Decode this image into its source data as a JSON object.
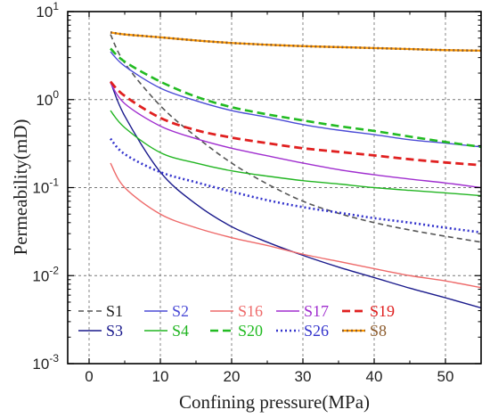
{
  "chart_data": {
    "type": "line",
    "xlabel": "Confining pressure(MPa)",
    "ylabel": "Permeability(mD)",
    "x_scale": "linear",
    "y_scale": "log",
    "xlim": [
      -3,
      55
    ],
    "ylim": [
      0.001,
      10
    ],
    "xticks": [
      0,
      10,
      20,
      30,
      40,
      50
    ],
    "xtick_labels": [
      "0",
      "10",
      "20",
      "30",
      "40",
      "50"
    ],
    "yticks": [
      0.001,
      0.01,
      0.1,
      1,
      10
    ],
    "ytick_labels": [
      {
        "base": "10",
        "exp": "-3"
      },
      {
        "base": "10",
        "exp": "-2"
      },
      {
        "base": "10",
        "exp": "-1"
      },
      {
        "base": "10",
        "exp": "0"
      },
      {
        "base": "10",
        "exp": "1"
      }
    ],
    "grid": true,
    "legend_position": "bottom-left, inside plot",
    "x": [
      3,
      5,
      10,
      15,
      20,
      25,
      30,
      35,
      40,
      45,
      50,
      55
    ],
    "series": [
      {
        "name": "S1",
        "color": "#555555",
        "dash": "dashed",
        "width": 1.6,
        "values": [
          5.5,
          2.6,
          0.85,
          0.38,
          0.19,
          0.11,
          0.07,
          0.051,
          0.04,
          0.033,
          0.028,
          0.024
        ]
      },
      {
        "name": "S3",
        "color": "#1a1a8c",
        "dash": "solid",
        "width": 1.4,
        "values": [
          1.6,
          0.65,
          0.15,
          0.065,
          0.036,
          0.024,
          0.017,
          0.0125,
          0.0095,
          0.0072,
          0.0056,
          0.0043
        ]
      },
      {
        "name": "S2",
        "color": "#4b4bd6",
        "dash": "solid",
        "width": 1.4,
        "values": [
          3.5,
          2.4,
          1.35,
          0.97,
          0.75,
          0.63,
          0.52,
          0.45,
          0.4,
          0.35,
          0.32,
          0.29
        ]
      },
      {
        "name": "S4",
        "color": "#22b522",
        "dash": "solid",
        "width": 1.4,
        "values": [
          0.75,
          0.48,
          0.25,
          0.19,
          0.155,
          0.135,
          0.12,
          0.11,
          0.1,
          0.093,
          0.087,
          0.081
        ]
      },
      {
        "name": "S16",
        "color": "#ee6a6a",
        "dash": "solid",
        "width": 1.4,
        "values": [
          0.19,
          0.1,
          0.05,
          0.035,
          0.027,
          0.022,
          0.0175,
          0.0145,
          0.012,
          0.01,
          0.0087,
          0.0073
        ]
      },
      {
        "name": "S20",
        "color": "#22bb22",
        "dash": "dashed",
        "width": 2.6,
        "values": [
          3.8,
          2.7,
          1.6,
          1.08,
          0.82,
          0.68,
          0.58,
          0.5,
          0.44,
          0.38,
          0.33,
          0.29
        ]
      },
      {
        "name": "S17",
        "color": "#a02ecf",
        "dash": "solid",
        "width": 1.4,
        "values": [
          1.55,
          0.9,
          0.5,
          0.36,
          0.28,
          0.23,
          0.19,
          0.16,
          0.14,
          0.125,
          0.113,
          0.1
        ]
      },
      {
        "name": "S26",
        "color": "#3333cc",
        "dash": "dotted",
        "width": 2.6,
        "values": [
          0.36,
          0.24,
          0.15,
          0.115,
          0.09,
          0.072,
          0.06,
          0.052,
          0.045,
          0.04,
          0.035,
          0.031
        ]
      },
      {
        "name": "S19",
        "color": "#e02020",
        "dash": "dashed",
        "width": 2.8,
        "values": [
          1.6,
          1.1,
          0.62,
          0.45,
          0.37,
          0.32,
          0.28,
          0.255,
          0.232,
          0.21,
          0.193,
          0.18
        ]
      },
      {
        "name": "S8",
        "color": "#8b5a2b",
        "dash": "dotted",
        "width": 2.6,
        "underlay": "#ff9a00",
        "values": [
          5.8,
          5.5,
          5.1,
          4.7,
          4.4,
          4.2,
          4.05,
          3.95,
          3.85,
          3.75,
          3.65,
          3.6
        ]
      }
    ],
    "legend_order": [
      [
        "S1",
        "S2",
        "S16",
        "S17",
        "S19"
      ],
      [
        "S3",
        "S4",
        "S20",
        "S26",
        "S8"
      ]
    ]
  }
}
